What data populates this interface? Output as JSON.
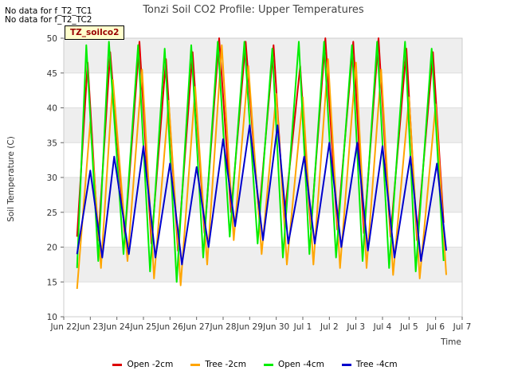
{
  "no_data": [
    "No data for f_T2_TC1",
    "No data for f_T2_TC2"
  ],
  "tag_label": "TZ_soilco2",
  "colors": {
    "band": "#eeeeee",
    "grid": "#dddddd"
  },
  "chart_data": {
    "type": "line",
    "title": "Tonzi Soil CO2 Profile: Upper Temperatures",
    "xlabel": "Time",
    "ylabel": "Soil Temperature (C)",
    "ylim": [
      10,
      50
    ],
    "xlim": [
      0,
      15
    ],
    "yticks": [
      10,
      15,
      20,
      25,
      30,
      35,
      40,
      45,
      50
    ],
    "x_tick_positions": [
      0,
      1,
      2,
      3,
      4,
      5,
      6,
      7,
      8,
      9,
      10,
      11,
      12,
      13,
      14,
      15
    ],
    "x_tick_labels": [
      "Jun 22",
      "Jun 23",
      "Jun 24",
      "Jun 25",
      "Jun 26",
      "Jun 27",
      "Jun 28",
      "Jun 29",
      "Jun 30",
      "Jul 1",
      "Jul 2",
      "Jul 3",
      "Jul 4",
      "Jul 5",
      "Jul 6",
      "Jul 7"
    ],
    "x_unit": "days since Jun 22",
    "grid": true,
    "legend_position": "bottom",
    "series": [
      {
        "name": "Open -2cm",
        "color": "#dd0000",
        "values": [
          [
            0.5,
            21.5
          ],
          [
            0.9,
            46.5
          ],
          [
            1.3,
            21.0
          ],
          [
            1.75,
            48.0
          ],
          [
            2.3,
            21.5
          ],
          [
            2.85,
            49.5
          ],
          [
            3.3,
            20.5
          ],
          [
            3.85,
            47.0
          ],
          [
            4.3,
            19.5
          ],
          [
            4.85,
            48.0
          ],
          [
            5.3,
            22.0
          ],
          [
            5.85,
            50.0
          ],
          [
            6.3,
            25.0
          ],
          [
            6.85,
            49.5
          ],
          [
            7.35,
            24.5
          ],
          [
            7.9,
            49.0
          ],
          [
            8.3,
            24.0
          ],
          [
            8.9,
            46.0
          ],
          [
            9.3,
            22.5
          ],
          [
            9.85,
            50.0
          ],
          [
            10.3,
            22.5
          ],
          [
            10.9,
            49.5
          ],
          [
            11.3,
            22.0
          ],
          [
            11.85,
            50.0
          ],
          [
            12.3,
            21.5
          ],
          [
            12.9,
            48.5
          ],
          [
            13.3,
            21.0
          ],
          [
            13.9,
            48.0
          ],
          [
            14.3,
            23.5
          ]
        ]
      },
      {
        "name": "Tree -2cm",
        "color": "#ffa500",
        "values": [
          [
            0.5,
            14.0
          ],
          [
            1.0,
            38.0
          ],
          [
            1.4,
            17.0
          ],
          [
            1.85,
            44.0
          ],
          [
            2.4,
            18.0
          ],
          [
            2.95,
            45.5
          ],
          [
            3.4,
            15.5
          ],
          [
            3.95,
            41.0
          ],
          [
            4.4,
            14.5
          ],
          [
            4.95,
            43.0
          ],
          [
            5.4,
            17.5
          ],
          [
            5.95,
            49.0
          ],
          [
            6.4,
            21.0
          ],
          [
            6.95,
            46.0
          ],
          [
            7.45,
            19.0
          ],
          [
            8.0,
            42.0
          ],
          [
            8.4,
            17.5
          ],
          [
            9.0,
            41.5
          ],
          [
            9.4,
            17.5
          ],
          [
            9.95,
            47.0
          ],
          [
            10.4,
            17.0
          ],
          [
            11.0,
            46.5
          ],
          [
            11.4,
            17.0
          ],
          [
            11.95,
            45.5
          ],
          [
            12.4,
            16.0
          ],
          [
            13.0,
            41.5
          ],
          [
            13.4,
            15.5
          ],
          [
            14.0,
            40.5
          ],
          [
            14.4,
            16.0
          ]
        ]
      },
      {
        "name": "Open -4cm",
        "color": "#00ee00",
        "values": [
          [
            0.5,
            17.0
          ],
          [
            0.85,
            49.0
          ],
          [
            1.3,
            18.0
          ],
          [
            1.7,
            49.5
          ],
          [
            2.25,
            19.0
          ],
          [
            2.8,
            49.0
          ],
          [
            3.25,
            16.5
          ],
          [
            3.8,
            48.5
          ],
          [
            4.25,
            15.0
          ],
          [
            4.8,
            49.0
          ],
          [
            5.25,
            18.5
          ],
          [
            5.8,
            49.5
          ],
          [
            6.25,
            21.5
          ],
          [
            6.8,
            49.5
          ],
          [
            7.3,
            20.5
          ],
          [
            7.85,
            48.5
          ],
          [
            8.25,
            18.5
          ],
          [
            8.85,
            49.5
          ],
          [
            9.25,
            19.0
          ],
          [
            9.8,
            49.5
          ],
          [
            10.25,
            18.5
          ],
          [
            10.85,
            49.0
          ],
          [
            11.25,
            18.0
          ],
          [
            11.8,
            49.5
          ],
          [
            12.25,
            17.0
          ],
          [
            12.85,
            49.5
          ],
          [
            13.25,
            16.5
          ],
          [
            13.85,
            48.5
          ],
          [
            14.3,
            18.0
          ]
        ]
      },
      {
        "name": "Tree -4cm",
        "color": "#0000cc",
        "values": [
          [
            0.5,
            19.0
          ],
          [
            1.0,
            31.0
          ],
          [
            1.45,
            18.5
          ],
          [
            1.9,
            33.0
          ],
          [
            2.45,
            19.0
          ],
          [
            3.0,
            34.5
          ],
          [
            3.45,
            18.5
          ],
          [
            4.0,
            32.0
          ],
          [
            4.45,
            17.5
          ],
          [
            5.0,
            31.5
          ],
          [
            5.45,
            20.0
          ],
          [
            6.0,
            35.5
          ],
          [
            6.45,
            23.0
          ],
          [
            7.0,
            37.5
          ],
          [
            7.5,
            21.0
          ],
          [
            8.05,
            37.5
          ],
          [
            8.45,
            20.5
          ],
          [
            9.05,
            33.0
          ],
          [
            9.45,
            20.5
          ],
          [
            10.0,
            35.0
          ],
          [
            10.45,
            20.0
          ],
          [
            11.05,
            35.0
          ],
          [
            11.45,
            19.5
          ],
          [
            12.0,
            34.5
          ],
          [
            12.45,
            18.5
          ],
          [
            13.05,
            33.0
          ],
          [
            13.45,
            18.0
          ],
          [
            14.05,
            32.0
          ],
          [
            14.4,
            19.5
          ]
        ]
      }
    ]
  }
}
